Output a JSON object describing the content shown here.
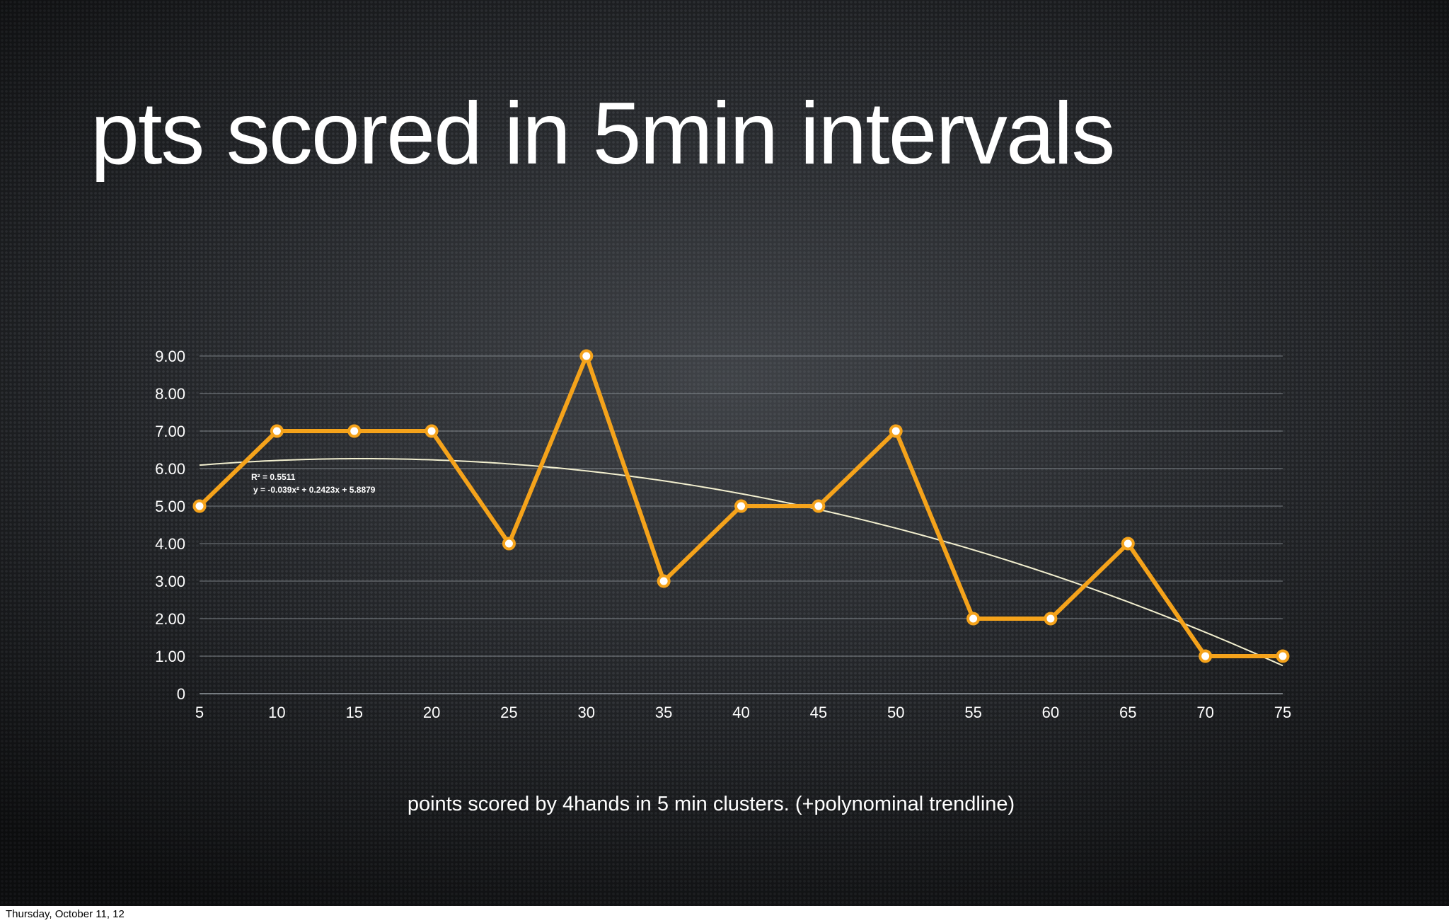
{
  "slide": {
    "title": "pts scored in 5min intervals",
    "caption": "points scored by 4hands in 5 min clusters. (+polynominal trendline)",
    "footer_date": "Thursday, October 11, 12"
  },
  "chart_data": {
    "type": "line",
    "title": "pts scored in 5min intervals",
    "xlabel": "",
    "ylabel": "",
    "x": [
      5,
      10,
      15,
      20,
      25,
      30,
      35,
      40,
      45,
      50,
      55,
      60,
      65,
      70,
      75
    ],
    "series": [
      {
        "values": [
          5,
          7,
          7,
          7,
          4,
          9,
          3,
          5,
          5,
          7,
          2,
          2,
          4,
          1,
          1
        ]
      }
    ],
    "x_tick_labels": [
      "5",
      "10",
      "15",
      "20",
      "25",
      "30",
      "35",
      "40",
      "45",
      "50",
      "55",
      "60",
      "65",
      "70",
      "75"
    ],
    "y_tick_labels": [
      "0",
      "1.00",
      "2.00",
      "3.00",
      "4.00",
      "5.00",
      "6.00",
      "7.00",
      "8.00",
      "9.00"
    ],
    "ylim": [
      0,
      9
    ],
    "xlim": [
      5,
      75
    ],
    "grid": true,
    "trendline": {
      "type": "polynomial",
      "coefficients": [
        -0.039,
        0.2423,
        5.8879
      ],
      "r_squared_label": "R² = 0.5511",
      "equation_label": "y = -0.039x² + 0.2423x + 5.8879"
    },
    "colors": {
      "series": "#f5a31b",
      "marker_fill": "#ffffff",
      "trendline": "#f2efcf",
      "grid": "#9aa0a6"
    }
  }
}
